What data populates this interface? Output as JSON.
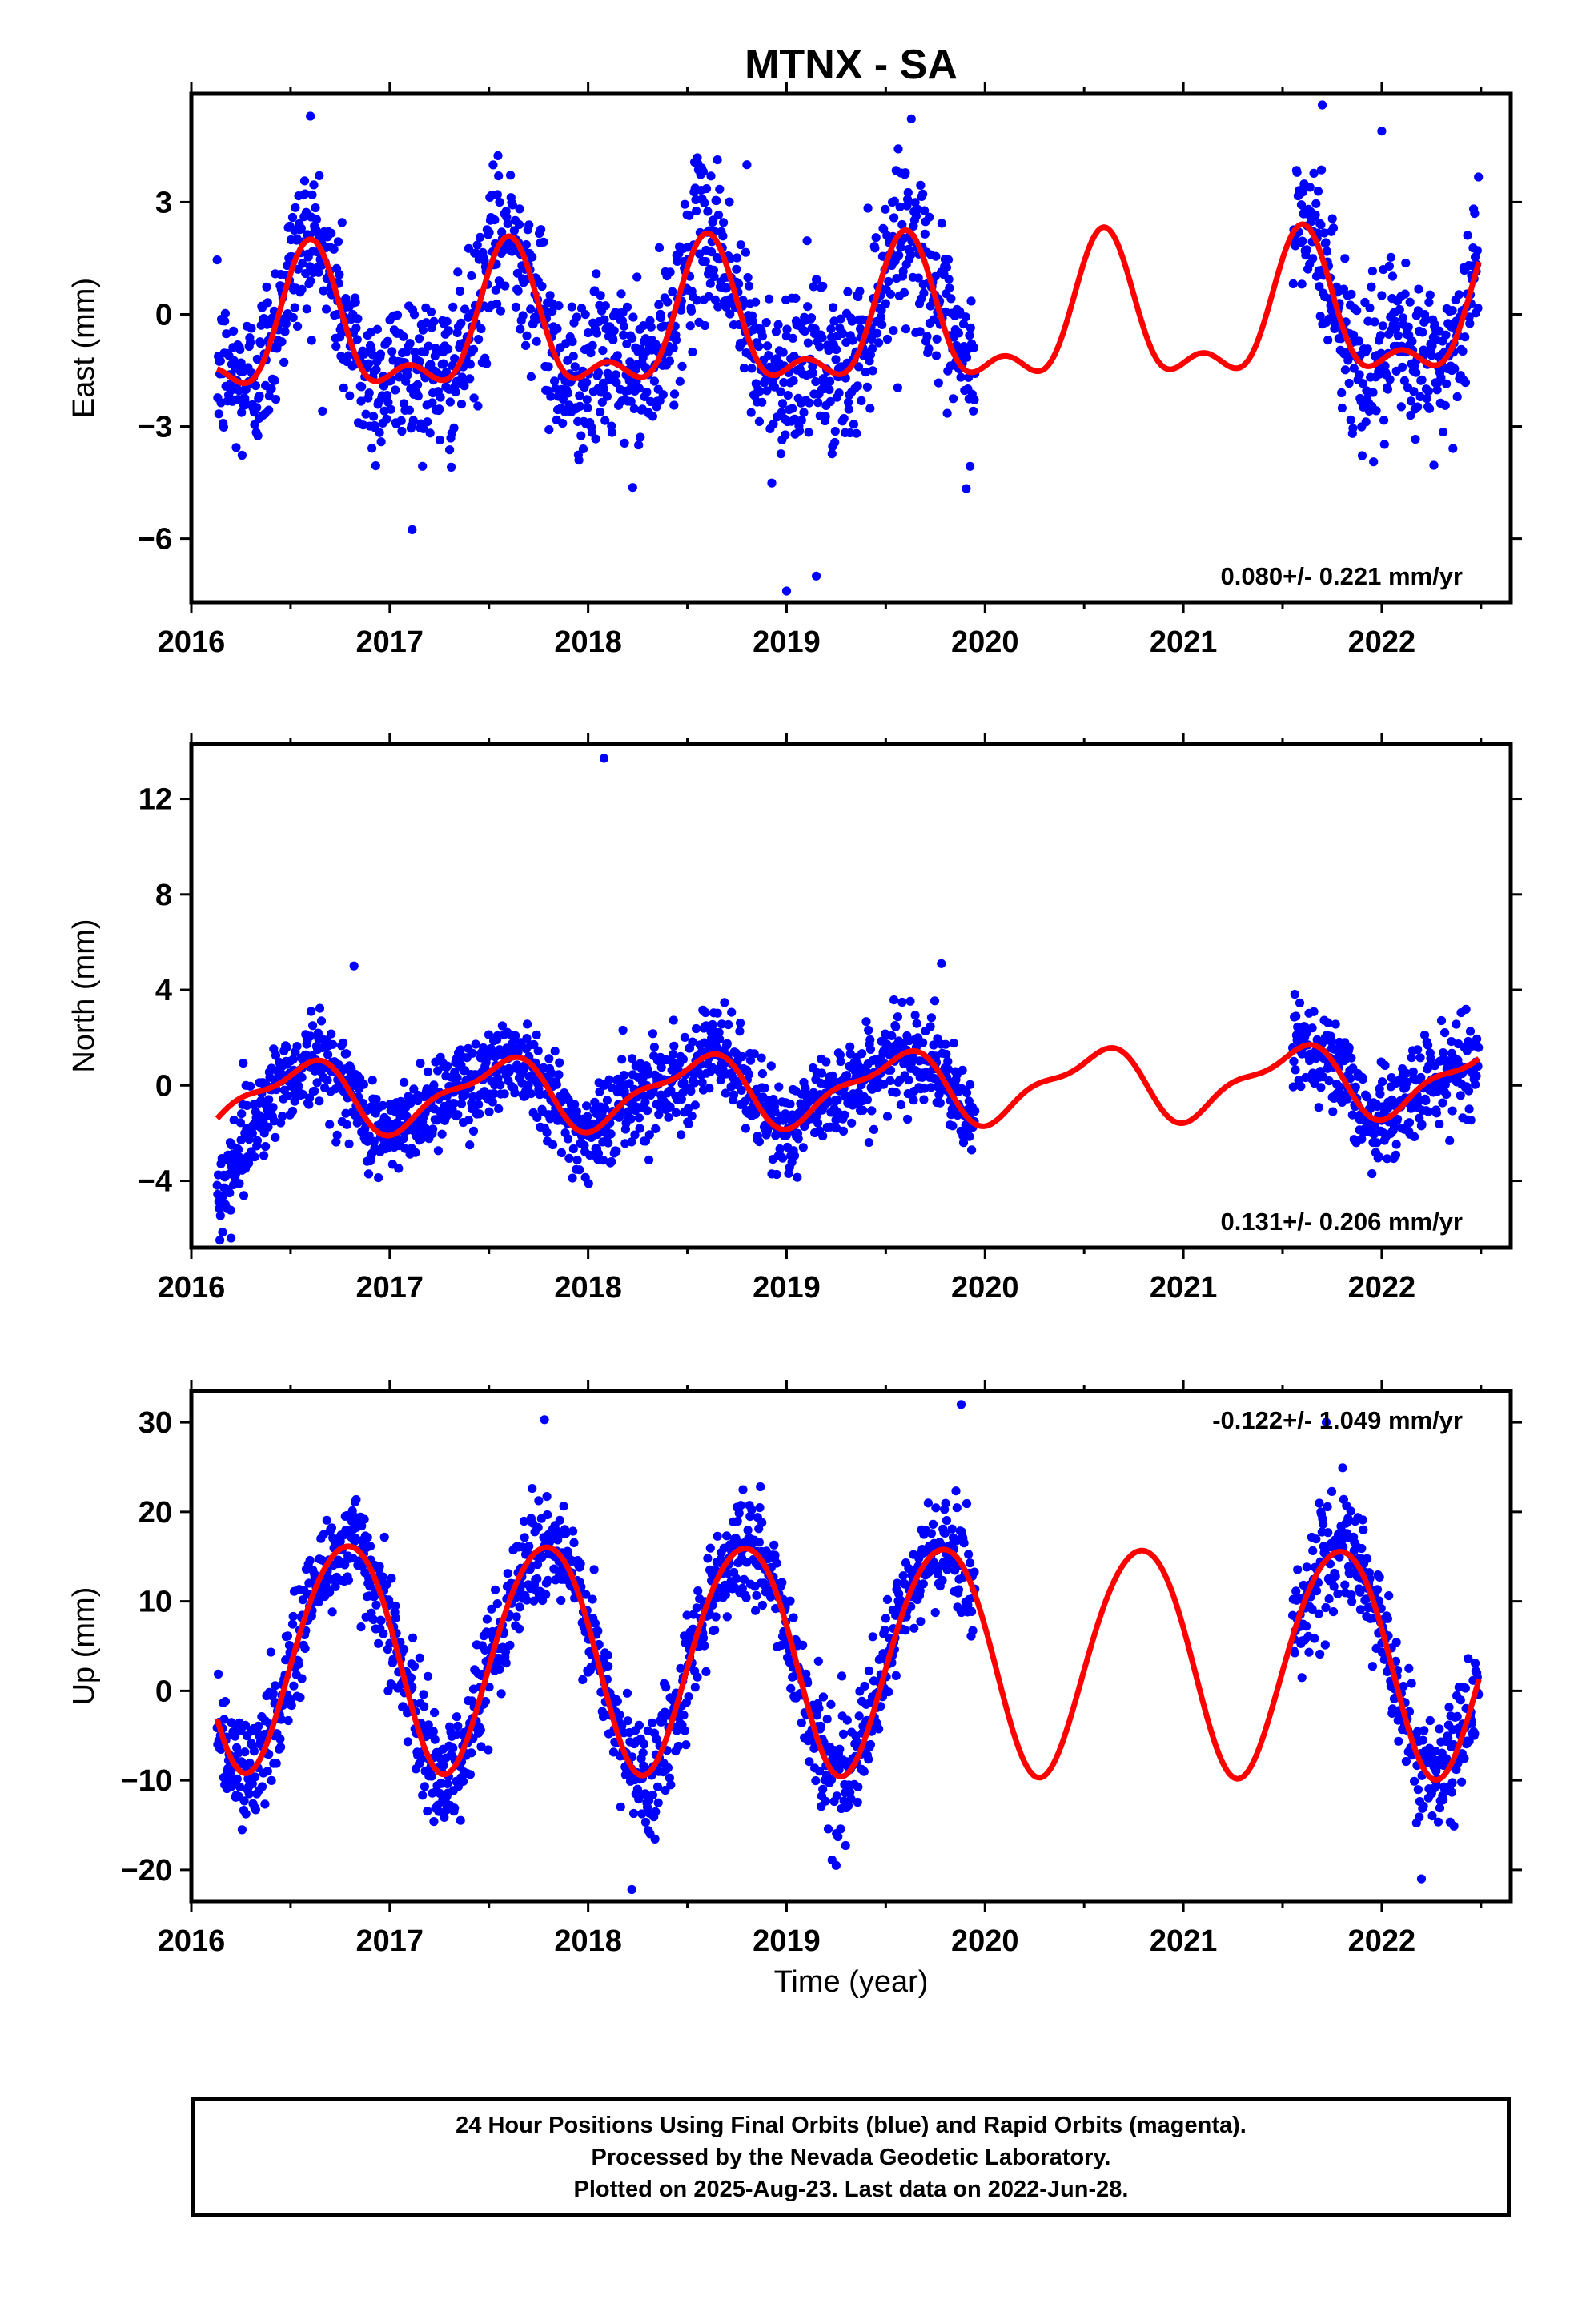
{
  "colors": {
    "points": "#0000ff",
    "fit": "#ff0000",
    "axis": "#000000"
  },
  "chart_data": {
    "type": "scatter",
    "title": "MTNX - SA",
    "xlabel": "Time (year)",
    "xlim": [
      2016,
      2022.65
    ],
    "x_ticks": [
      2016,
      2017,
      2018,
      2019,
      2020,
      2021,
      2022
    ],
    "data_start": 2016.13,
    "data_end": 2022.49,
    "data_gap": [
      2019.95,
      2021.55
    ],
    "point_series": "24 Hour Positions Using Final Orbits (blue)",
    "fit_series": "Rapid Orbits (magenta)",
    "panels": [
      {
        "id": "east",
        "ylabel": "East (mm)",
        "ylim": [
          -7.7,
          5.9
        ],
        "y_ticks": [
          3,
          0,
          -3,
          -6
        ],
        "velocity": "0.080+/- 0.221 mm/yr",
        "velocity_pos": "bottom-right",
        "fit": {
          "offset": -0.35,
          "trend": 0.08,
          "annual_amp": 1.7,
          "annual_phase": 2016.6,
          "semiannual_amp": 0.85,
          "semiannual_phase": 2016.1
        },
        "noise": 1.05,
        "outliers": [
          [
            2019.0,
            -7.4
          ],
          [
            2019.15,
            -7.0
          ],
          [
            2016.6,
            5.3
          ],
          [
            2021.7,
            5.6
          ],
          [
            2022.0,
            4.9
          ],
          [
            2018.8,
            4.0
          ]
        ]
      },
      {
        "id": "north",
        "ylabel": "North (mm)",
        "ylim": [
          -6.8,
          14.3
        ],
        "y_ticks": [
          12,
          8,
          4,
          0,
          -4
        ],
        "velocity": "0.131+/- 0.206 mm/yr",
        "velocity_pos": "bottom-right",
        "fit": {
          "offset": -0.15,
          "trend": 0.13,
          "annual_amp": 1.35,
          "annual_phase": 2016.55,
          "semiannual_amp": 0.5,
          "semiannual_phase": 2016.2
        },
        "noise": 0.95,
        "outliers": [
          [
            2018.08,
            13.7
          ],
          [
            2016.82,
            5.0
          ],
          [
            2019.78,
            5.1
          ],
          [
            2016.2,
            -6.4
          ]
        ],
        "early_offset": {
          "until": 2016.42,
          "value": -3.4
        }
      },
      {
        "id": "up",
        "ylabel": "Up (mm)",
        "ylim": [
          -23.5,
          33.5
        ],
        "y_ticks": [
          30,
          20,
          10,
          0,
          -10,
          -20
        ],
        "velocity": "-0.122+/- 1.049 mm/yr",
        "velocity_pos": "top-right",
        "fit": {
          "offset": 4.0,
          "trend": -0.12,
          "annual_amp": 12.7,
          "annual_phase": 2016.78,
          "semiannual_amp": 0.9,
          "semiannual_phase": 2016.0
        },
        "noise": 3.1,
        "outliers": [
          [
            2017.78,
            30.3
          ],
          [
            2019.88,
            32.0
          ],
          [
            2021.72,
            30.0
          ],
          [
            2018.22,
            -22.2
          ],
          [
            2019.25,
            -19.5
          ],
          [
            2022.2,
            -21.0
          ]
        ]
      }
    ]
  },
  "footer": {
    "line1": "24 Hour Positions Using Final Orbits (blue) and Rapid Orbits (magenta).",
    "line2": "Processed by the Nevada Geodetic Laboratory.",
    "line3": "Plotted on 2025-Aug-23. Last data on 2022-Jun-28."
  }
}
